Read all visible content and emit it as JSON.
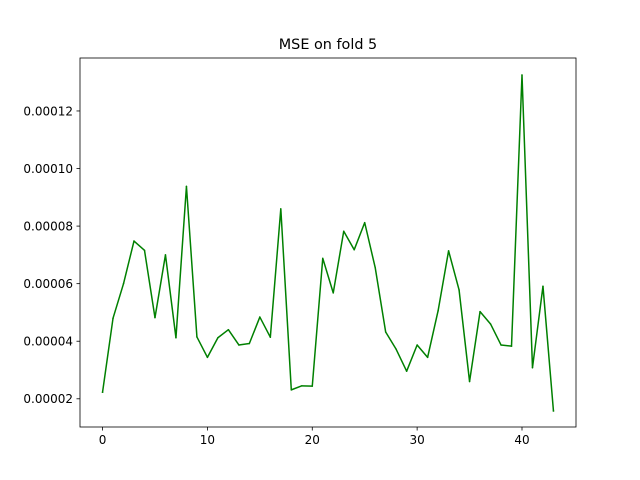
{
  "chart_data": {
    "type": "line",
    "title": "MSE on fold 5",
    "xlabel": "",
    "ylabel": "",
    "xlim": [
      -2.15,
      45.15
    ],
    "ylim": [
      1.02e-05,
      0.0001384
    ],
    "xticks": [
      0,
      10,
      20,
      30,
      40
    ],
    "xtick_labels": [
      "0",
      "10",
      "20",
      "30",
      "40"
    ],
    "yticks": [
      2e-05,
      4e-05,
      6e-05,
      8e-05,
      0.0001,
      0.00012
    ],
    "ytick_labels": [
      "0.00002",
      "0.00004",
      "0.00006",
      "0.00008",
      "0.00010",
      "0.00012"
    ],
    "grid": false,
    "series": [
      {
        "color": "#008000",
        "x": [
          0,
          1,
          2,
          3,
          4,
          5,
          6,
          7,
          8,
          9,
          10,
          11,
          12,
          13,
          14,
          15,
          16,
          17,
          18,
          19,
          20,
          21,
          22,
          23,
          24,
          25,
          26,
          27,
          28,
          29,
          30,
          31,
          32,
          33,
          34,
          35,
          36,
          37,
          38,
          39,
          40,
          41,
          42,
          43
        ],
        "values": [
          2.23e-05,
          4.8e-05,
          6e-05,
          7.48e-05,
          7.16e-05,
          4.82e-05,
          7e-05,
          4.12e-05,
          9.38e-05,
          4.15e-05,
          3.44e-05,
          4.12e-05,
          4.4e-05,
          3.87e-05,
          3.92e-05,
          4.84e-05,
          4.14e-05,
          8.6e-05,
          2.31e-05,
          2.45e-05,
          2.44e-05,
          6.88e-05,
          5.68e-05,
          7.82e-05,
          7.18e-05,
          8.12e-05,
          6.56e-05,
          4.32e-05,
          3.72e-05,
          2.96e-05,
          3.87e-05,
          3.44e-05,
          5.06e-05,
          7.14e-05,
          5.78e-05,
          2.6e-05,
          5.03e-05,
          4.6e-05,
          3.87e-05,
          3.83e-05,
          0.0001325,
          3.08e-05,
          5.91e-05,
          1.58e-05
        ]
      }
    ]
  }
}
